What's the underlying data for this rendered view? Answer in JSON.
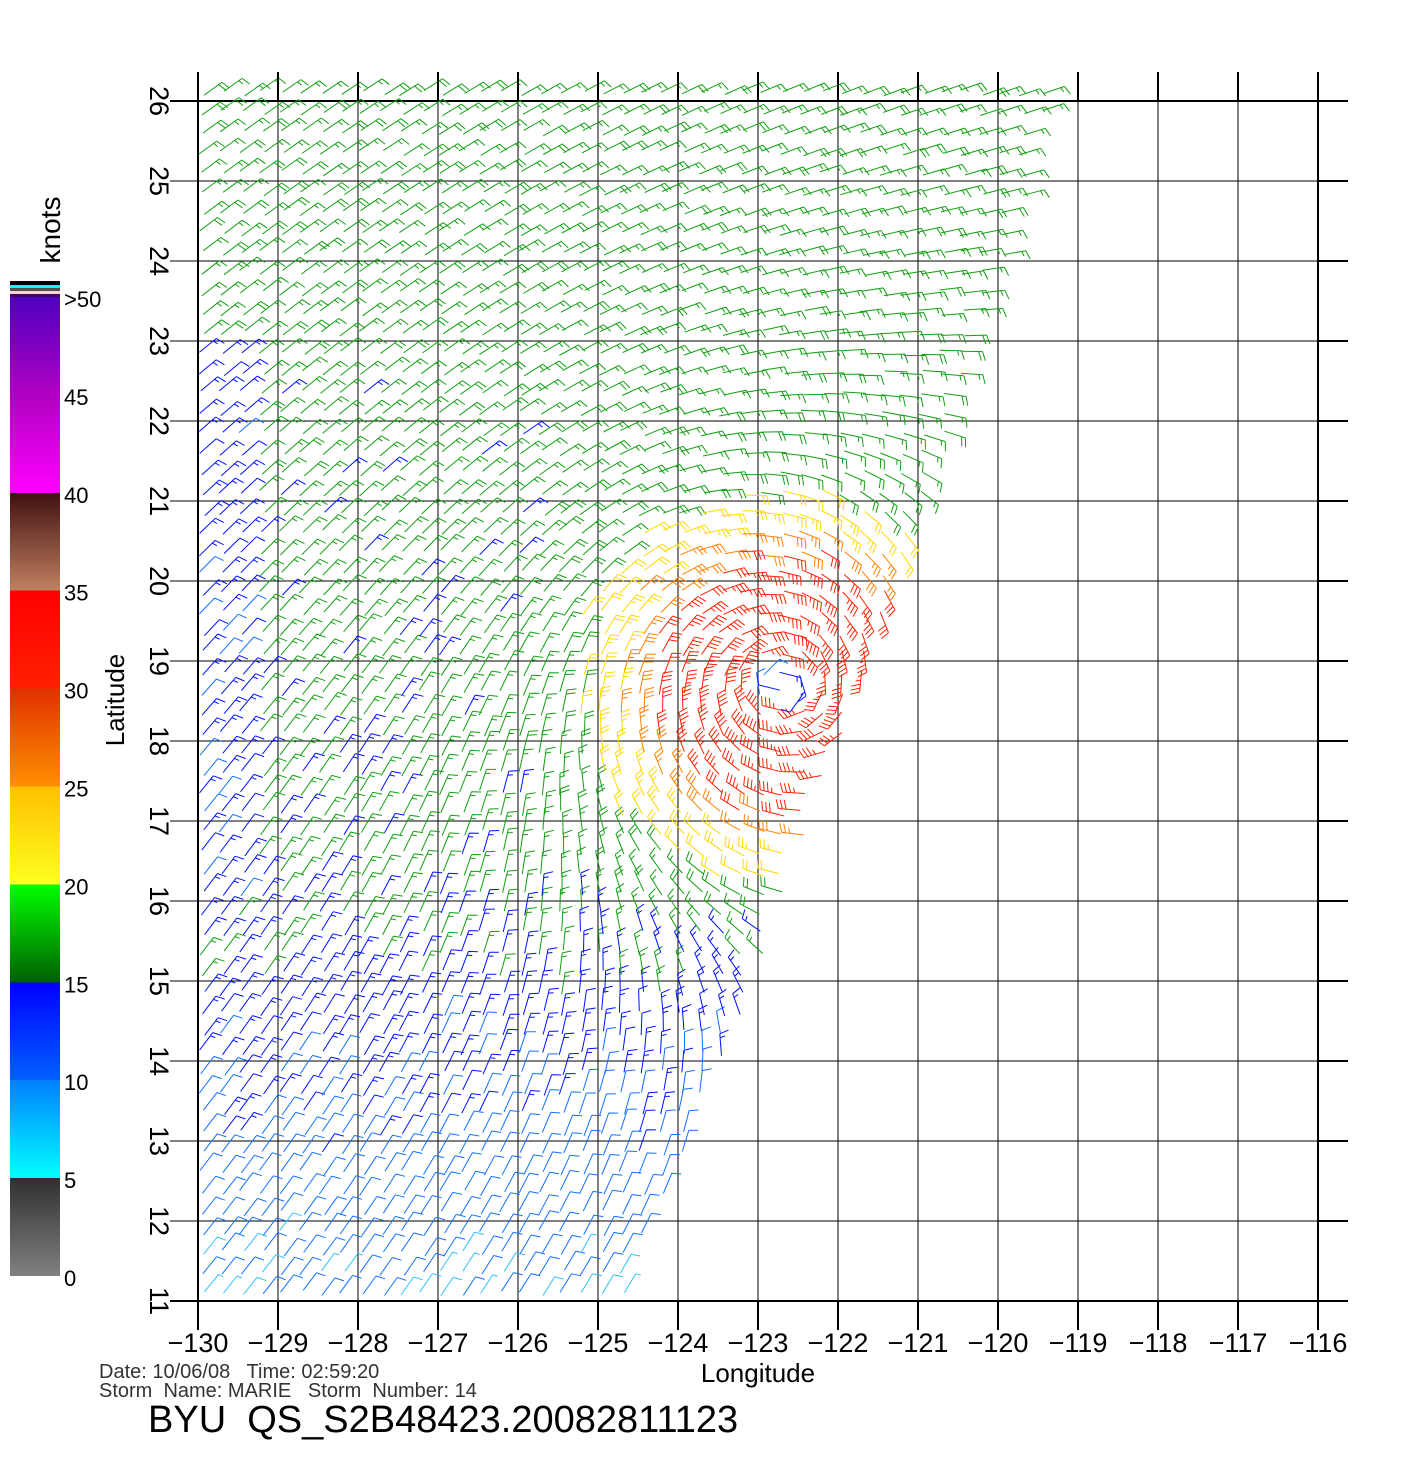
{
  "chart_data": {
    "type": "wind-barb",
    "xlabel": "Longitude",
    "ylabel": "Latitude",
    "xlim": [
      -130,
      -116
    ],
    "ylim": [
      11,
      26
    ],
    "x_ticks": [
      "−130",
      "−129",
      "−128",
      "−127",
      "−126",
      "−125",
      "−124",
      "−123",
      "−122",
      "−121",
      "−120",
      "−119",
      "−118",
      "−117",
      "−116"
    ],
    "y_ticks": [
      "11",
      "12",
      "13",
      "14",
      "15",
      "16",
      "17",
      "18",
      "19",
      "20",
      "21",
      "22",
      "23",
      "24",
      "25",
      "26"
    ],
    "grid": true,
    "colorbar": {
      "label": "knots",
      "ticks": [
        "0",
        "5",
        "10",
        "15",
        "20",
        "25",
        "30",
        "35",
        "40",
        "45",
        ">50"
      ],
      "colors": [
        "#808080",
        "#00ffff",
        "#0070ff",
        "#0000ff",
        "#00ff00",
        "#ffff00",
        "#ff8000",
        "#ff0000",
        "#c08060",
        "#ff00ff",
        "#6000c0"
      ]
    }
  },
  "info": {
    "date_line": "Date: 10/06/08   Time: 02:59:20",
    "storm_line": "Storm  Name: MARIE   Storm  Number: 14",
    "product": "BYU  QS_S2B48423.20082811123"
  }
}
